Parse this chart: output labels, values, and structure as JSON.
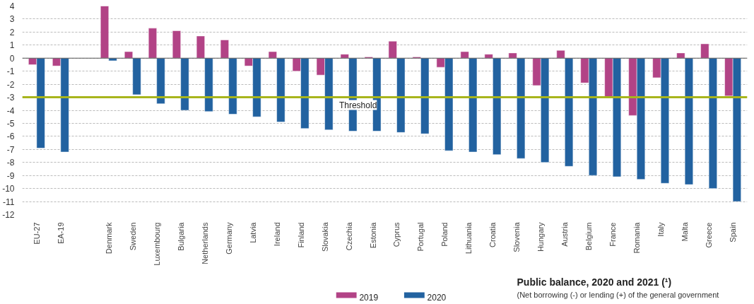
{
  "chart_data": {
    "type": "bar",
    "title": "Public balance, 2020 and 2021 (¹)",
    "subtitle": "(Net borrowing (-) or lending (+) of the general government",
    "categories": [
      "EU-27",
      "EA-19",
      null,
      "Denmark",
      "Sweden",
      "Luxembourg",
      "Bulgaria",
      "Netherlands",
      "Germany",
      "Latvia",
      "Ireland",
      "Finland",
      "Slovakia",
      "Czechia",
      "Estonia",
      "Cyprus",
      "Portugal",
      "Poland",
      "Lithuania",
      "Croatia",
      "Slovenia",
      "Hungary",
      "Austria",
      "Belgium",
      "France",
      "Romania",
      "Italy",
      "Malta",
      "Greece",
      "Spain"
    ],
    "series": [
      {
        "name": "2019",
        "color": "#b24386",
        "values": [
          -0.5,
          -0.6,
          null,
          4.0,
          0.5,
          2.3,
          2.1,
          1.7,
          1.4,
          -0.6,
          0.5,
          -1.0,
          -1.3,
          0.3,
          0.1,
          1.3,
          0.1,
          -0.7,
          0.5,
          0.3,
          0.4,
          -2.1,
          0.6,
          -1.9,
          -3.0,
          -4.4,
          -1.5,
          0.4,
          1.1,
          -2.9
        ]
      },
      {
        "name": "2020",
        "color": "#2262a0",
        "values": [
          -6.9,
          -7.2,
          null,
          -0.2,
          -2.8,
          -3.5,
          -4.0,
          -4.1,
          -4.3,
          -4.5,
          -4.9,
          -5.4,
          -5.5,
          -5.6,
          -5.6,
          -5.7,
          -5.8,
          -7.1,
          -7.2,
          -7.4,
          -7.7,
          -8.0,
          -8.3,
          -9.0,
          -9.1,
          -9.3,
          -9.6,
          -9.7,
          -10.0,
          -11.0
        ]
      }
    ],
    "ylim": [
      -12,
      4
    ],
    "yticks": [
      4,
      3,
      2,
      1,
      0,
      -1,
      -2,
      -3,
      -4,
      -5,
      -6,
      -7,
      -8,
      -9,
      -10,
      -11,
      -12
    ],
    "grid": "y",
    "legend": "bottom",
    "ref_lines": [
      {
        "axis": "y",
        "value": -3,
        "label": "Threshold",
        "color": "#a8b51c"
      }
    ]
  }
}
